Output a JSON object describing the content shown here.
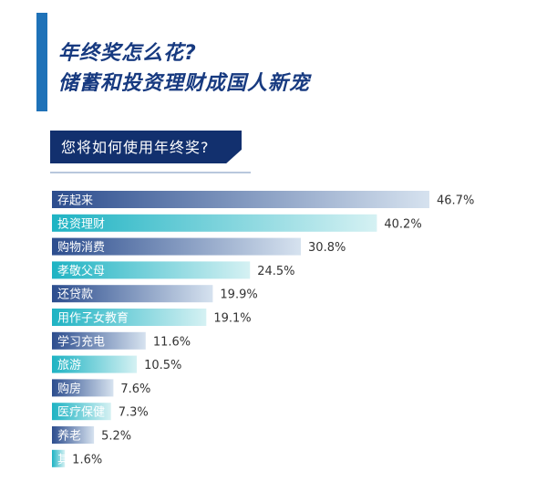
{
  "header": {
    "title_line1": "年终奖怎么花?",
    "title_line2": "储蓄和投资理财成国人新宠",
    "subtitle": "您将如何使用年终奖?"
  },
  "colors": {
    "title": "#173a80",
    "accent_bar": "#1f72b8",
    "banner": "#12306e",
    "navy_start": "#2c4d8e",
    "navy_end": "#d6e2ef",
    "teal_start": "#1eb3c3",
    "teal_end": "#d5f1f3"
  },
  "chart_data": {
    "type": "bar",
    "orientation": "horizontal",
    "title": "您将如何使用年终奖?",
    "categories": [
      "存起来",
      "投资理财",
      "购物消费",
      "孝敬父母",
      "还贷款",
      "用作子女教育",
      "学习充电",
      "旅游",
      "购房",
      "医疗保健",
      "养老",
      "其他"
    ],
    "values": [
      46.7,
      40.2,
      30.8,
      24.5,
      19.9,
      19.1,
      11.6,
      10.5,
      7.6,
      7.3,
      5.2,
      1.6
    ],
    "value_labels": [
      "46.7%",
      "40.2%",
      "30.8%",
      "24.5%",
      "19.9%",
      "19.1%",
      "11.6%",
      "10.5%",
      "7.6%",
      "7.3%",
      "5.2%",
      "1.6%"
    ],
    "unit": "%",
    "xlim": [
      0,
      46.7
    ],
    "color_pattern": [
      "navy",
      "teal"
    ]
  }
}
